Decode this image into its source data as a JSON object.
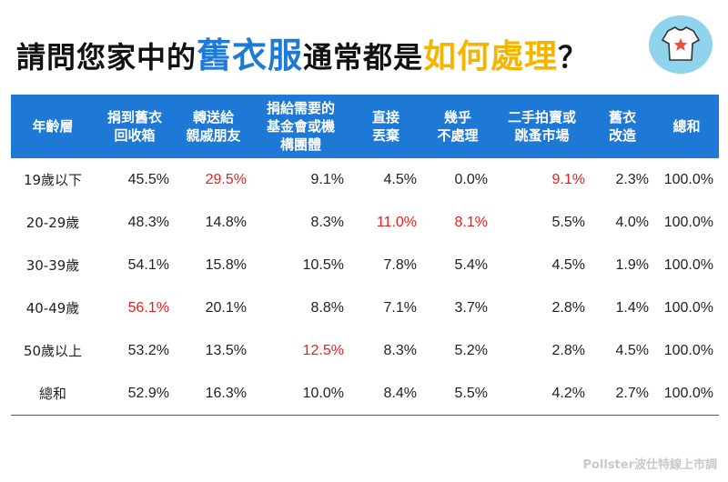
{
  "title": {
    "part1": "請問您家中的",
    "highlight1": "舊衣服",
    "part2": "通常都是",
    "highlight2": "如何處理",
    "part3": "？"
  },
  "colors": {
    "header_bg": "#1e78d6",
    "highlight_red": "#ee1c1c",
    "title_blue": "#1e7ad6",
    "title_yellow": "#f4b400"
  },
  "icon": "t-shirt-star-icon",
  "chart_data": {
    "type": "table",
    "columns": [
      [
        "年齡層"
      ],
      [
        "捐到舊衣",
        "回收箱"
      ],
      [
        "轉送給",
        "親戚朋友"
      ],
      [
        "捐給需要的",
        "基金會或機",
        "構團體"
      ],
      [
        "直接",
        "丟棄"
      ],
      [
        "幾乎",
        "不處理"
      ],
      [
        "二手拍賣或",
        "跳蚤市場"
      ],
      [
        "舊衣",
        "改造"
      ],
      [
        "總和"
      ]
    ],
    "rows": [
      {
        "label": "19歲以下",
        "values": [
          "45.5%",
          "29.5%",
          "9.1%",
          "4.5%",
          "0.0%",
          "9.1%",
          "2.3%",
          "100.0%"
        ],
        "highlight": [
          false,
          true,
          false,
          false,
          false,
          true,
          false,
          false
        ]
      },
      {
        "label": "20-29歲",
        "values": [
          "48.3%",
          "14.8%",
          "8.3%",
          "11.0%",
          "8.1%",
          "5.5%",
          "4.0%",
          "100.0%"
        ],
        "highlight": [
          false,
          false,
          false,
          true,
          true,
          false,
          false,
          false
        ]
      },
      {
        "label": "30-39歲",
        "values": [
          "54.1%",
          "15.8%",
          "10.5%",
          "7.8%",
          "5.4%",
          "4.5%",
          "1.9%",
          "100.0%"
        ],
        "highlight": [
          false,
          false,
          false,
          false,
          false,
          false,
          false,
          false
        ]
      },
      {
        "label": "40-49歲",
        "values": [
          "56.1%",
          "20.1%",
          "8.8%",
          "7.1%",
          "3.7%",
          "2.8%",
          "1.4%",
          "100.0%"
        ],
        "highlight": [
          true,
          false,
          false,
          false,
          false,
          false,
          false,
          false
        ]
      },
      {
        "label": "50歲以上",
        "values": [
          "53.2%",
          "13.5%",
          "12.5%",
          "8.3%",
          "5.2%",
          "2.8%",
          "4.5%",
          "100.0%"
        ],
        "highlight": [
          false,
          false,
          true,
          false,
          false,
          false,
          false,
          false
        ]
      },
      {
        "label": "總和",
        "values": [
          "52.9%",
          "16.3%",
          "10.0%",
          "8.4%",
          "5.5%",
          "4.2%",
          "2.7%",
          "100.0%"
        ],
        "highlight": [
          false,
          false,
          false,
          false,
          false,
          false,
          false,
          false
        ]
      }
    ]
  },
  "footer": "Pollster波仕特線上市調"
}
